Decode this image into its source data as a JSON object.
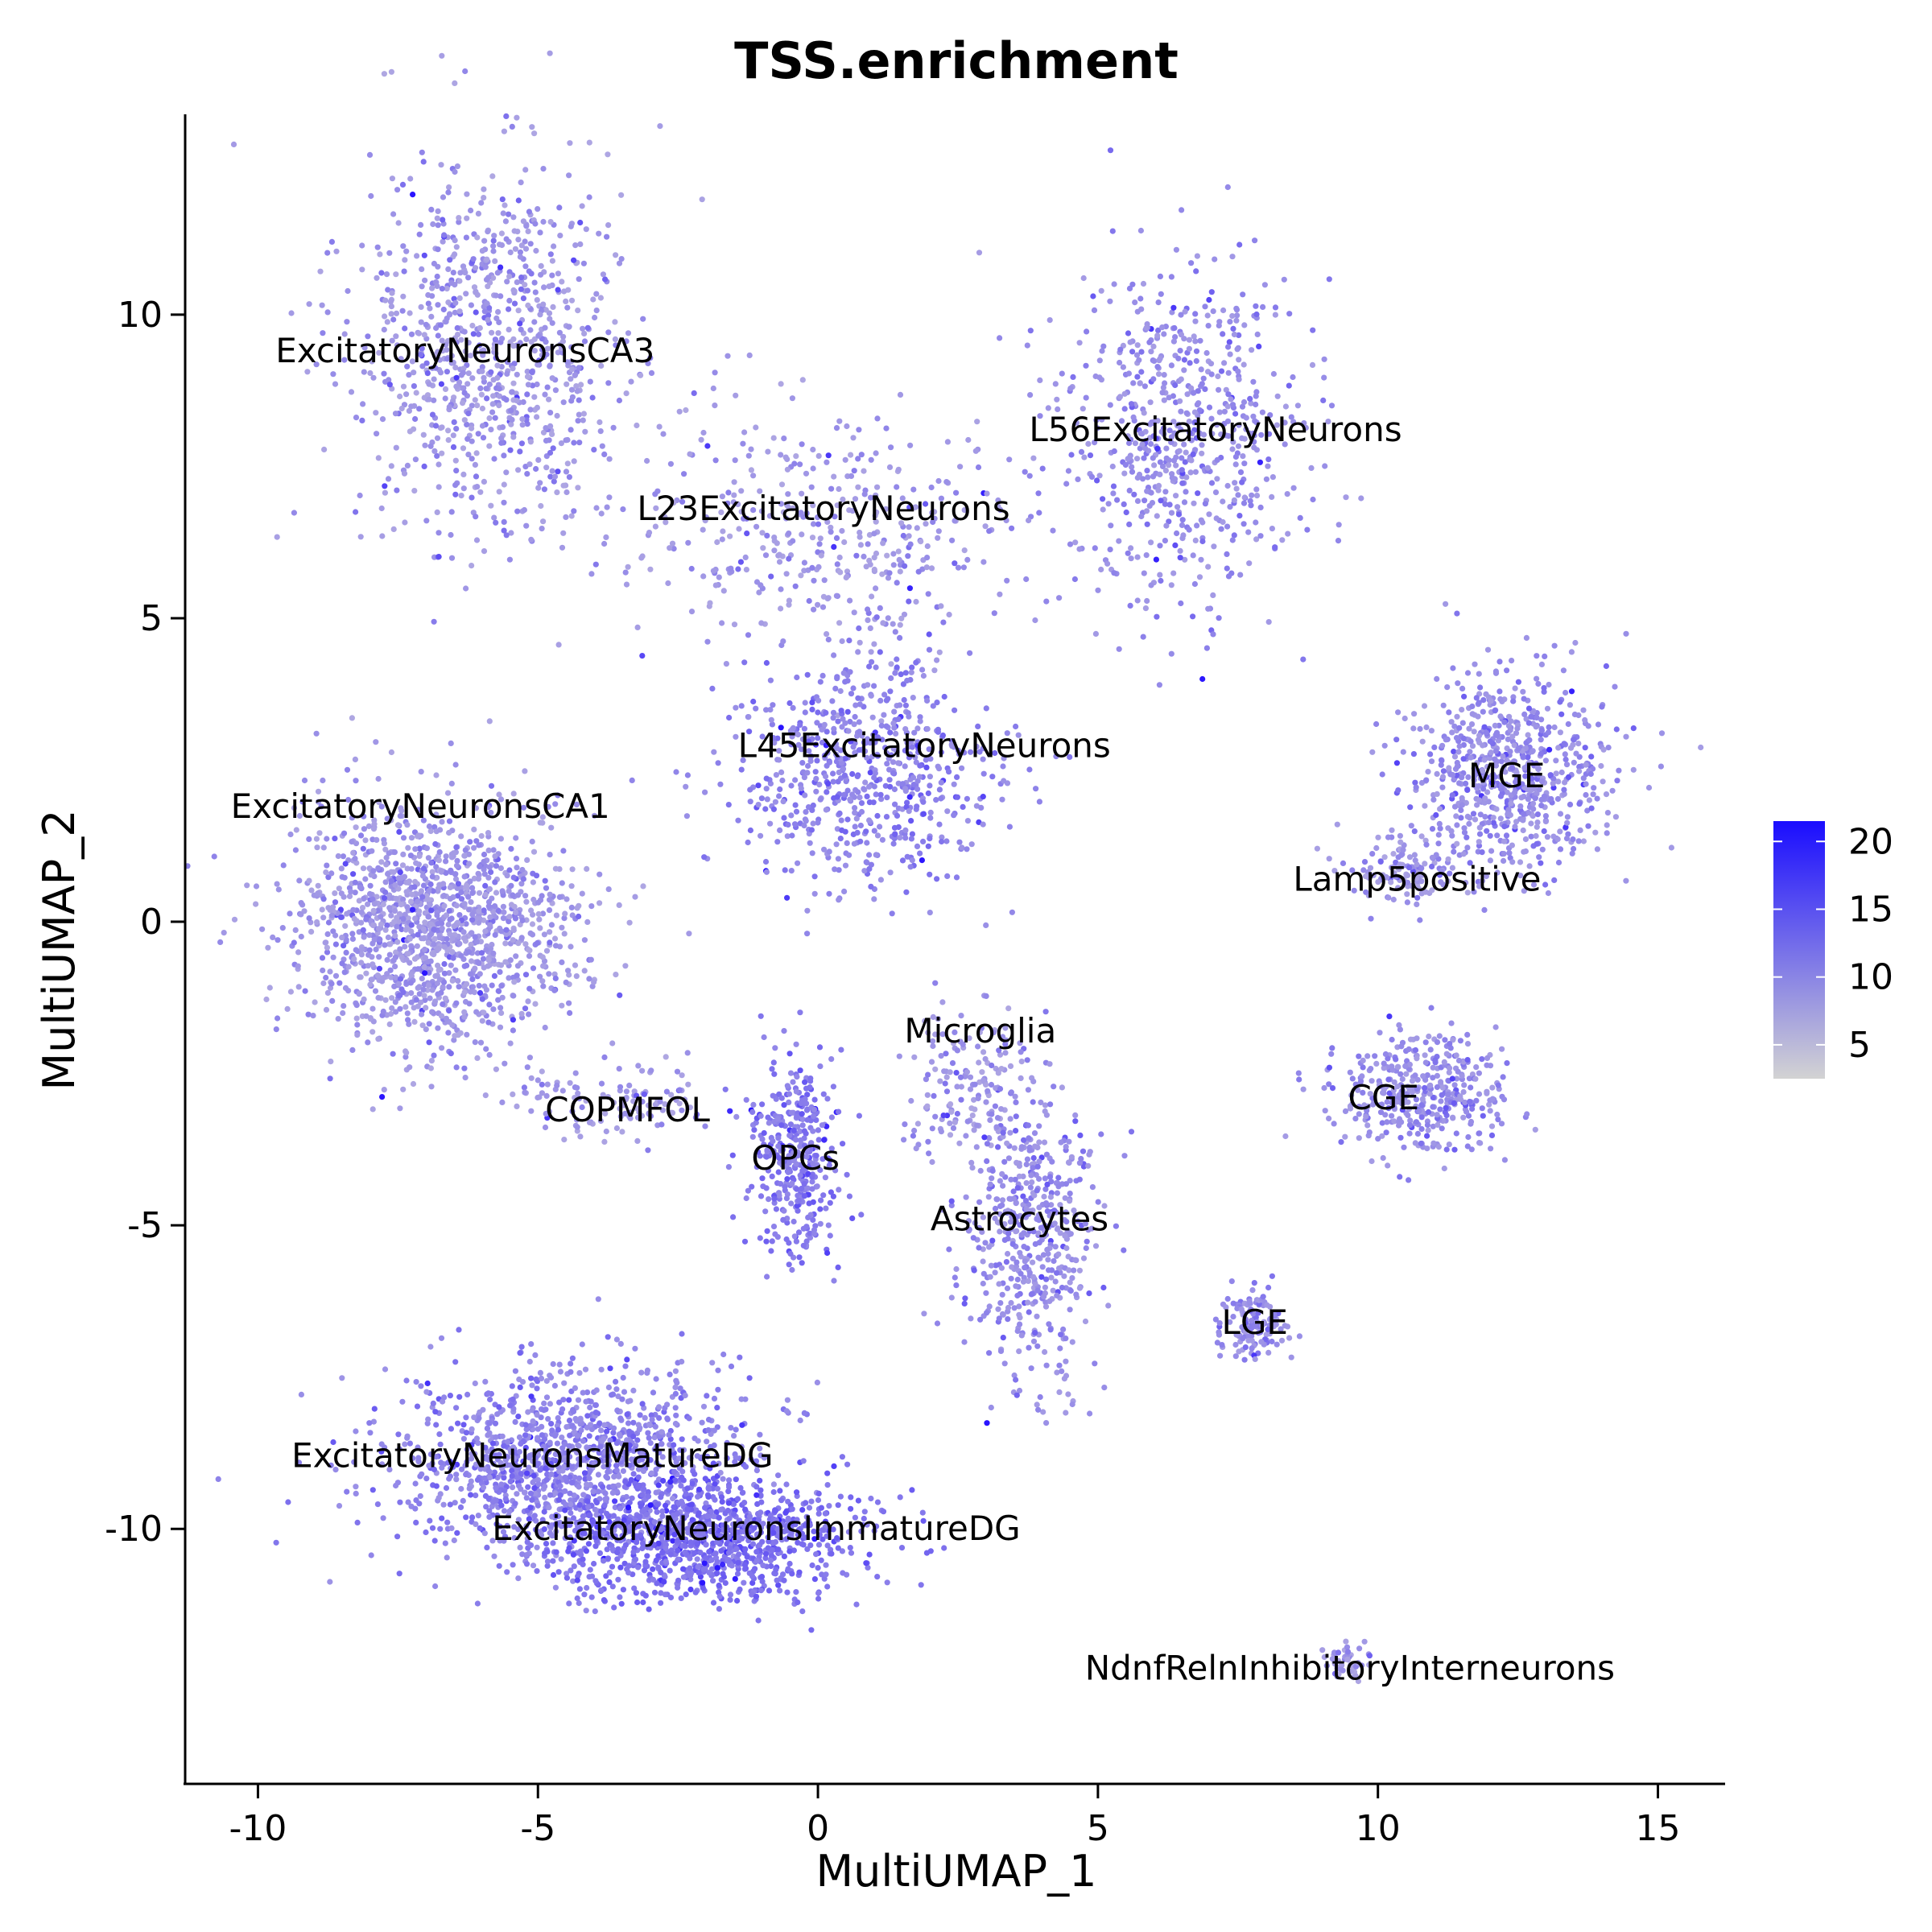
{
  "chart_data": {
    "type": "scatter",
    "title": "TSS.enrichment",
    "xlabel": "MultiUMAP_1",
    "ylabel": "MultiUMAP_2",
    "xlim": [
      -11.3,
      16.2
    ],
    "ylim": [
      -14.2,
      13.3
    ],
    "xticks": [
      -10,
      -5,
      0,
      5,
      10,
      15
    ],
    "yticks": [
      10,
      5,
      0,
      -5,
      -10
    ],
    "xtick_labels": [
      "-10",
      "-5",
      "0",
      "5",
      "10",
      "15"
    ],
    "ytick_labels": [
      "10",
      "5",
      "0",
      "-5",
      "-10"
    ],
    "grid": false,
    "legend": {
      "placement": "right",
      "type": "colorbar",
      "range": [
        2.5,
        21.5
      ],
      "ticks": [
        20,
        15,
        10,
        5
      ],
      "tick_labels": [
        "20",
        "15",
        "10",
        "5"
      ],
      "low_color": "#d3d3d3",
      "high_color": "#1a0dff"
    },
    "point_color_low": "#cdc8dc",
    "point_color_high": "#2a14ff",
    "clusters": [
      {
        "label": "ExcitatoryNeuronsCA3",
        "label_x": -6.3,
        "label_y": 9.4,
        "cx": -5.8,
        "cy": 9.5,
        "sx": 1.2,
        "sy": 1.5,
        "n": 900,
        "mean": 6
      },
      {
        "label": "L23ExcitatoryNeurons",
        "label_x": 0.1,
        "label_y": 6.8,
        "cx": 0.2,
        "cy": 6.3,
        "sx": 1.8,
        "sy": 1.0,
        "n": 420,
        "mean": 6
      },
      {
        "label": "L56ExcitatoryNeurons",
        "label_x": 7.1,
        "label_y": 8.1,
        "cx": 6.5,
        "cy": 8.0,
        "sx": 1.1,
        "sy": 1.3,
        "n": 650,
        "mean": 7
      },
      {
        "label": "L45ExcitatoryNeurons",
        "label_x": 1.9,
        "label_y": 2.9,
        "cx": 0.9,
        "cy": 2.4,
        "sx": 1.1,
        "sy": 0.9,
        "n": 650,
        "mean": 8
      },
      {
        "label": "ExcitatoryNeuronsCA1",
        "label_x": -7.1,
        "label_y": 1.9,
        "cx": -6.8,
        "cy": 0.0,
        "sx": 1.3,
        "sy": 1.0,
        "n": 1400,
        "mean": 6
      },
      {
        "label": "MGE",
        "label_x": 12.3,
        "label_y": 2.4,
        "cx": 12.3,
        "cy": 2.5,
        "sx": 0.9,
        "sy": 0.8,
        "n": 700,
        "mean": 7
      },
      {
        "label": "Lamp5positive",
        "label_x": 10.7,
        "label_y": 0.7,
        "cx": 10.5,
        "cy": 0.9,
        "sx": 0.5,
        "sy": 0.3,
        "n": 120,
        "mean": 6
      },
      {
        "label": "Microglia",
        "label_x": 2.9,
        "label_y": -1.8,
        "cx": 2.7,
        "cy": -2.7,
        "sx": 0.5,
        "sy": 0.6,
        "n": 150,
        "mean": 6
      },
      {
        "label": "CGE",
        "label_x": 10.1,
        "label_y": -2.9,
        "cx": 10.7,
        "cy": -2.8,
        "sx": 0.8,
        "sy": 0.5,
        "n": 400,
        "mean": 7
      },
      {
        "label": "COPMFOL",
        "label_x": -3.4,
        "label_y": -3.1,
        "cx": -3.6,
        "cy": -3.0,
        "sx": 0.9,
        "sy": 0.3,
        "n": 120,
        "mean": 6
      },
      {
        "label": "OPCs",
        "label_x": -0.4,
        "label_y": -3.9,
        "cx": -0.4,
        "cy": -3.9,
        "sx": 0.4,
        "sy": 0.8,
        "n": 380,
        "mean": 9
      },
      {
        "label": "Astrocytes",
        "label_x": 3.6,
        "label_y": -4.9,
        "cx": 3.8,
        "cy": -5.2,
        "sx": 0.6,
        "sy": 1.2,
        "n": 520,
        "mean": 7
      },
      {
        "label": "LGE",
        "label_x": 7.8,
        "label_y": -6.6,
        "cx": 7.8,
        "cy": -6.6,
        "sx": 0.3,
        "sy": 0.3,
        "n": 130,
        "mean": 7
      },
      {
        "label": "ExcitatoryNeuronsMatureDG",
        "label_x": -5.1,
        "label_y": -8.8,
        "cx": -4.4,
        "cy": -8.9,
        "sx": 1.7,
        "sy": 0.8,
        "n": 1300,
        "mean": 8
      },
      {
        "label": "ExcitatoryNeuronsImmatureDG",
        "label_x": -1.1,
        "label_y": -10.0,
        "cx": -2.0,
        "cy": -10.2,
        "sx": 1.4,
        "sy": 0.5,
        "n": 1000,
        "mean": 10
      },
      {
        "label": "NdnfRelnInhibitoryInterneurons",
        "label_x": 9.5,
        "label_y": -12.3,
        "cx": 9.4,
        "cy": -12.2,
        "sx": 0.2,
        "sy": 0.15,
        "n": 50,
        "mean": 6
      }
    ]
  }
}
